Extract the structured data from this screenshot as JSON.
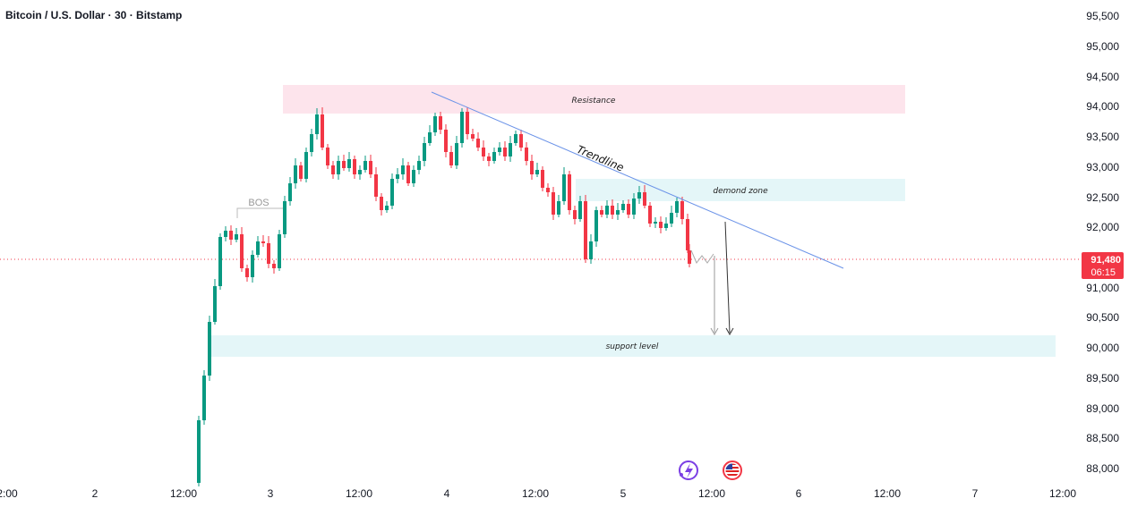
{
  "header": {
    "title": "Bitcoin / U.S. Dollar · 30 · Bitstamp"
  },
  "colors": {
    "up": "#089981",
    "down": "#f23645",
    "trendline": "#5b8def",
    "resistance": "#fde4ec",
    "zone": "#e4f6f8",
    "price_line": "#f23645"
  },
  "current_price": {
    "label": "91,480",
    "countdown": "06:15",
    "value": 91480
  },
  "annotations": {
    "resistance": "Resistance",
    "demand": "demond zone",
    "support": "support level",
    "trendline": "Trendline",
    "bos": "BOS"
  },
  "icons": [
    "lightning-icon",
    "us-flag-icon"
  ],
  "chart_data": {
    "type": "candlestick",
    "title": "Bitcoin / U.S. Dollar · 30 · Bitstamp",
    "y_ticks": [
      "95,500",
      "95,000",
      "94,500",
      "94,000",
      "93,500",
      "93,000",
      "92,500",
      "92,000",
      "91,000",
      "90,500",
      "90,000",
      "89,500",
      "89,000",
      "88,500",
      "88,000"
    ],
    "x_ticks": [
      "2:00",
      "2",
      "12:00",
      "3",
      "12:00",
      "4",
      "12:00",
      "5",
      "12:00",
      "6",
      "12:00",
      "7",
      "12:00"
    ],
    "ylim": [
      87800,
      95700
    ],
    "zones": [
      {
        "name": "Resistance",
        "y_low": 93870,
        "y_high": 94330
      },
      {
        "name": "demond zone",
        "y_low": 92430,
        "y_high": 92800
      },
      {
        "name": "support level",
        "y_low": 89850,
        "y_high": 90210
      }
    ],
    "trendline": {
      "from_price": 94240,
      "to_price": 91320
    },
    "bos_level": 92300
  }
}
